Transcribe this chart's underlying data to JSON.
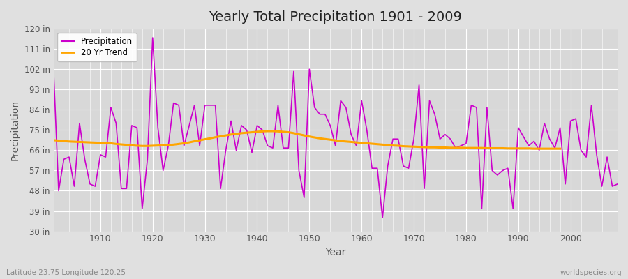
{
  "title": "Yearly Total Precipitation 1901 - 2009",
  "xlabel": "Year",
  "ylabel": "Precipitation",
  "subtitle_left": "Latitude 23.75 Longitude 120.25",
  "subtitle_right": "worldspecies.org",
  "bg_color": "#e0e0e0",
  "plot_bg_color": "#d8d8d8",
  "precip_color": "#cc00cc",
  "trend_color": "#ffa500",
  "ylim": [
    30,
    120
  ],
  "yticks": [
    30,
    39,
    48,
    57,
    66,
    75,
    84,
    93,
    102,
    111,
    120
  ],
  "ytick_labels": [
    "30 in",
    "39 in",
    "48 in",
    "57 in",
    "66 in",
    "75 in",
    "84 in",
    "93 in",
    "102 in",
    "111 in",
    "120 in"
  ],
  "years": [
    1901,
    1902,
    1903,
    1904,
    1905,
    1906,
    1907,
    1908,
    1909,
    1910,
    1911,
    1912,
    1913,
    1914,
    1915,
    1916,
    1917,
    1918,
    1919,
    1920,
    1921,
    1922,
    1923,
    1924,
    1925,
    1926,
    1927,
    1928,
    1929,
    1930,
    1931,
    1932,
    1933,
    1934,
    1935,
    1936,
    1937,
    1938,
    1939,
    1940,
    1941,
    1942,
    1943,
    1944,
    1945,
    1946,
    1947,
    1948,
    1949,
    1950,
    1951,
    1952,
    1953,
    1954,
    1955,
    1956,
    1957,
    1958,
    1959,
    1960,
    1961,
    1962,
    1963,
    1964,
    1965,
    1966,
    1967,
    1968,
    1969,
    1970,
    1971,
    1972,
    1973,
    1974,
    1975,
    1976,
    1977,
    1978,
    1979,
    1980,
    1981,
    1982,
    1983,
    1984,
    1985,
    1986,
    1987,
    1988,
    1989,
    1990,
    1991,
    1992,
    1993,
    1994,
    1995,
    1996,
    1997,
    1998,
    1999,
    2000,
    2001,
    2002,
    2003,
    2004,
    2005,
    2006,
    2007,
    2008,
    2009
  ],
  "precip": [
    103,
    48,
    62,
    63,
    50,
    78,
    62,
    51,
    50,
    64,
    63,
    85,
    78,
    49,
    49,
    77,
    76,
    40,
    62,
    116,
    76,
    57,
    68,
    87,
    86,
    68,
    77,
    86,
    68,
    86,
    86,
    86,
    49,
    66,
    79,
    66,
    77,
    75,
    65,
    77,
    75,
    68,
    67,
    86,
    67,
    67,
    101,
    57,
    45,
    102,
    85,
    82,
    82,
    77,
    68,
    88,
    85,
    73,
    68,
    88,
    75,
    58,
    58,
    36,
    59,
    71,
    71,
    59,
    58,
    71,
    95,
    49,
    88,
    82,
    71,
    73,
    71,
    67,
    68,
    69,
    86,
    85,
    40,
    85,
    57,
    55,
    57,
    58,
    40,
    76,
    72,
    68,
    70,
    66,
    78,
    71,
    67,
    76,
    51,
    79,
    80,
    66,
    63,
    86,
    64,
    50,
    63,
    50,
    51
  ],
  "trend": [
    70.5,
    70.3,
    70.1,
    69.9,
    69.8,
    69.7,
    69.6,
    69.5,
    69.4,
    69.3,
    69.2,
    69.1,
    68.8,
    68.6,
    68.4,
    68.2,
    68.0,
    67.9,
    67.9,
    68.0,
    68.1,
    68.2,
    68.3,
    68.5,
    68.8,
    69.1,
    69.5,
    70.0,
    70.4,
    70.9,
    71.3,
    71.8,
    72.2,
    72.6,
    73.0,
    73.3,
    73.6,
    73.8,
    74.0,
    74.2,
    74.4,
    74.5,
    74.5,
    74.4,
    74.2,
    74.0,
    73.6,
    73.1,
    72.6,
    72.1,
    71.7,
    71.3,
    71.0,
    70.7,
    70.4,
    70.1,
    69.9,
    69.7,
    69.5,
    69.3,
    69.1,
    68.9,
    68.7,
    68.5,
    68.3,
    68.1,
    68.0,
    67.8,
    67.7,
    67.6,
    67.5,
    67.4,
    67.3,
    67.3,
    67.2,
    67.2,
    67.1,
    67.1,
    67.1,
    67.0,
    67.0,
    67.0,
    67.0,
    66.9,
    66.9,
    66.9,
    66.9,
    66.8,
    66.8,
    66.8,
    66.8,
    66.8,
    66.7,
    66.7,
    66.7,
    66.7,
    66.7,
    66.7,
    null,
    null,
    null,
    null,
    null,
    null,
    null,
    null,
    null,
    null,
    null
  ]
}
